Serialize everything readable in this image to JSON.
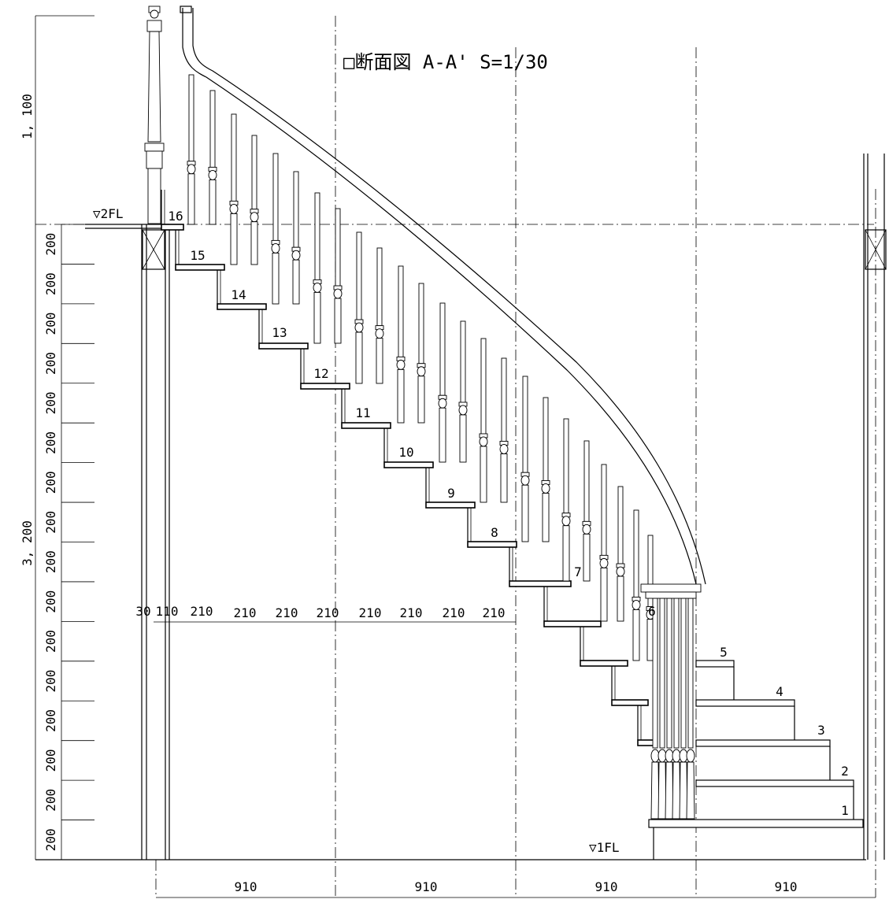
{
  "title": "□断面図 A-A' S=1/30",
  "level_2fl": "▽2FL",
  "level_1fl": "▽1FL",
  "left_dims": {
    "handrail_height": "1, 100",
    "total_rise": "3, 200",
    "riser": "200",
    "riser_count": 16
  },
  "bottom_dims": [
    "910",
    "910",
    "910",
    "910"
  ],
  "tread_dims": [
    "30",
    "110",
    "210",
    "210",
    "210",
    "210",
    "210",
    "210",
    "210",
    "210",
    "210"
  ],
  "step_labels": [
    "1",
    "2",
    "3",
    "4",
    "5",
    "6",
    "7",
    "8",
    "9",
    "10",
    "11",
    "12",
    "13",
    "14",
    "15",
    "16"
  ]
}
